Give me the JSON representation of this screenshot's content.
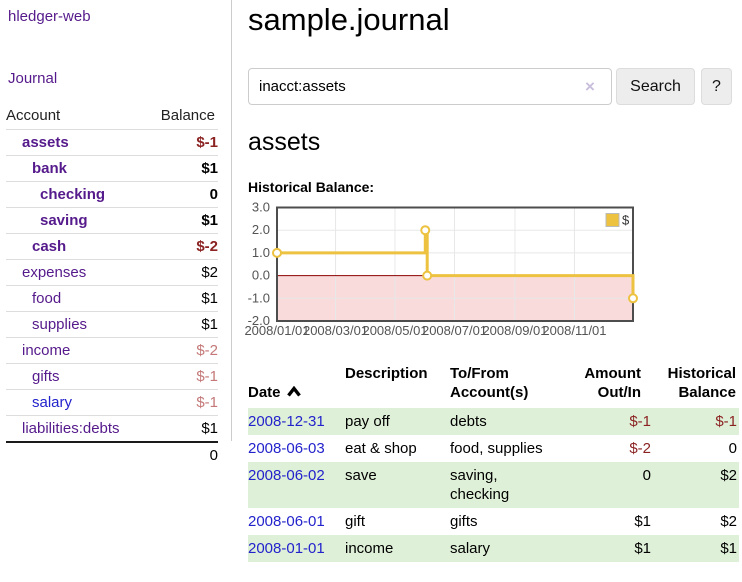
{
  "colors": {
    "purple": "#551a8b",
    "blue": "#2323cc",
    "negative": "#8b2323",
    "negativeDim": "#c47878",
    "stripe": "#dff0d8",
    "gold": "#edc240",
    "chartPink": "#f9dbdb",
    "zeroLine": "#8b0000"
  },
  "sidebar": {
    "brand": "hledger-web",
    "journal_link": "Journal",
    "accounts": {
      "header_account": "Account",
      "header_balance": "Balance",
      "rows": [
        {
          "name": "assets",
          "balance": "$-1",
          "level": 1,
          "in_account": true,
          "balance_color": "negative"
        },
        {
          "name": "bank",
          "balance": "$1",
          "level": 2,
          "in_account": true,
          "balance_color": "normal"
        },
        {
          "name": "checking",
          "balance": "0",
          "level": 3,
          "in_account": true,
          "balance_color": "normal"
        },
        {
          "name": "saving",
          "balance": "$1",
          "level": 3,
          "in_account": true,
          "balance_color": "normal"
        },
        {
          "name": "cash",
          "balance": "$-2",
          "level": 2,
          "in_account": true,
          "balance_color": "negative"
        },
        {
          "name": "expenses",
          "balance": "$2",
          "level": 1,
          "in_account": false,
          "balance_color": "normal"
        },
        {
          "name": "food",
          "balance": "$1",
          "level": 2,
          "in_account": false,
          "balance_color": "normal"
        },
        {
          "name": "supplies",
          "balance": "$1",
          "level": 2,
          "in_account": false,
          "balance_color": "normal"
        },
        {
          "name": "income",
          "balance": "$-2",
          "level": 1,
          "in_account": false,
          "balance_color": "negative-dim"
        },
        {
          "name": "gifts",
          "balance": "$-1",
          "level": 2,
          "in_account": false,
          "balance_color": "negative-dim"
        },
        {
          "name": "salary",
          "balance": "$-1",
          "level": 2,
          "in_account": false,
          "balance_color": "negative-dim",
          "link_color": "blue"
        },
        {
          "name": "liabilities:debts",
          "balance": "$1",
          "level": 1,
          "in_account": false,
          "balance_color": "normal"
        }
      ],
      "total": "0"
    }
  },
  "main": {
    "title": "sample.journal",
    "search": {
      "value": "inacct:assets",
      "clear_icon": "×",
      "search_button": "Search",
      "help_button": "?"
    },
    "account_heading": "assets",
    "chart_title": "Historical Balance:"
  },
  "chart_data": {
    "type": "line",
    "step": true,
    "title": "Historical Balance",
    "series": [
      {
        "name": "$",
        "color": "#edc240",
        "points": [
          [
            "2008-01-01",
            1.0
          ],
          [
            "2008-06-01",
            2.0
          ],
          [
            "2008-06-03",
            0.0
          ],
          [
            "2008-12-31",
            -1.0
          ]
        ]
      }
    ],
    "x_range": [
      "2008-01-01",
      "2008-12-31"
    ],
    "x_ticks": [
      {
        "date": "2008-01-01",
        "label": "2008/01/01"
      },
      {
        "date": "2008-03-01",
        "label": "2008/03/01"
      },
      {
        "date": "2008-05-01",
        "label": "2008/05/01"
      },
      {
        "date": "2008-07-01",
        "label": "2008/07/01"
      },
      {
        "date": "2008-09-01",
        "label": "2008/09/01"
      },
      {
        "date": "2008-11-01",
        "label": "2008/11/01"
      }
    ],
    "y_ticks": [
      {
        "value": 3,
        "label": "3.0"
      },
      {
        "value": 2,
        "label": "2.0"
      },
      {
        "value": 1,
        "label": "1.0"
      },
      {
        "value": 0,
        "label": "0.0"
      },
      {
        "value": -1,
        "label": "-1.0"
      },
      {
        "value": -2,
        "label": "-2.0"
      }
    ],
    "ylim": [
      -2,
      3
    ],
    "grid": true,
    "legend_position": "top-right",
    "negative_region_color": "#f9dbdb",
    "zero_line_color": "#8b0000"
  },
  "transactions": {
    "headers": {
      "date": "Date",
      "description": "Description",
      "tofrom": "To/From\nAccount(s)",
      "amount": "Amount\nOut/In",
      "balance": "Historical\nBalance"
    },
    "rows": [
      {
        "date": "2008-12-31",
        "description": "pay off",
        "accounts": "debts",
        "amount": "$-1",
        "balance": "$-1",
        "amount_color": "negative",
        "balance_color": "negative"
      },
      {
        "date": "2008-06-03",
        "description": "eat & shop",
        "accounts": "food, supplies",
        "amount": "$-2",
        "balance": "0",
        "amount_color": "negative",
        "balance_color": "normal"
      },
      {
        "date": "2008-06-02",
        "description": "save",
        "accounts": "saving, checking",
        "amount": "0",
        "balance": "$2",
        "amount_color": "normal",
        "balance_color": "normal"
      },
      {
        "date": "2008-06-01",
        "description": "gift",
        "accounts": "gifts",
        "amount": "$1",
        "balance": "$2",
        "amount_color": "normal",
        "balance_color": "normal"
      },
      {
        "date": "2008-01-01",
        "description": "income",
        "accounts": "salary",
        "amount": "$1",
        "balance": "$1",
        "amount_color": "normal",
        "balance_color": "normal"
      }
    ]
  }
}
